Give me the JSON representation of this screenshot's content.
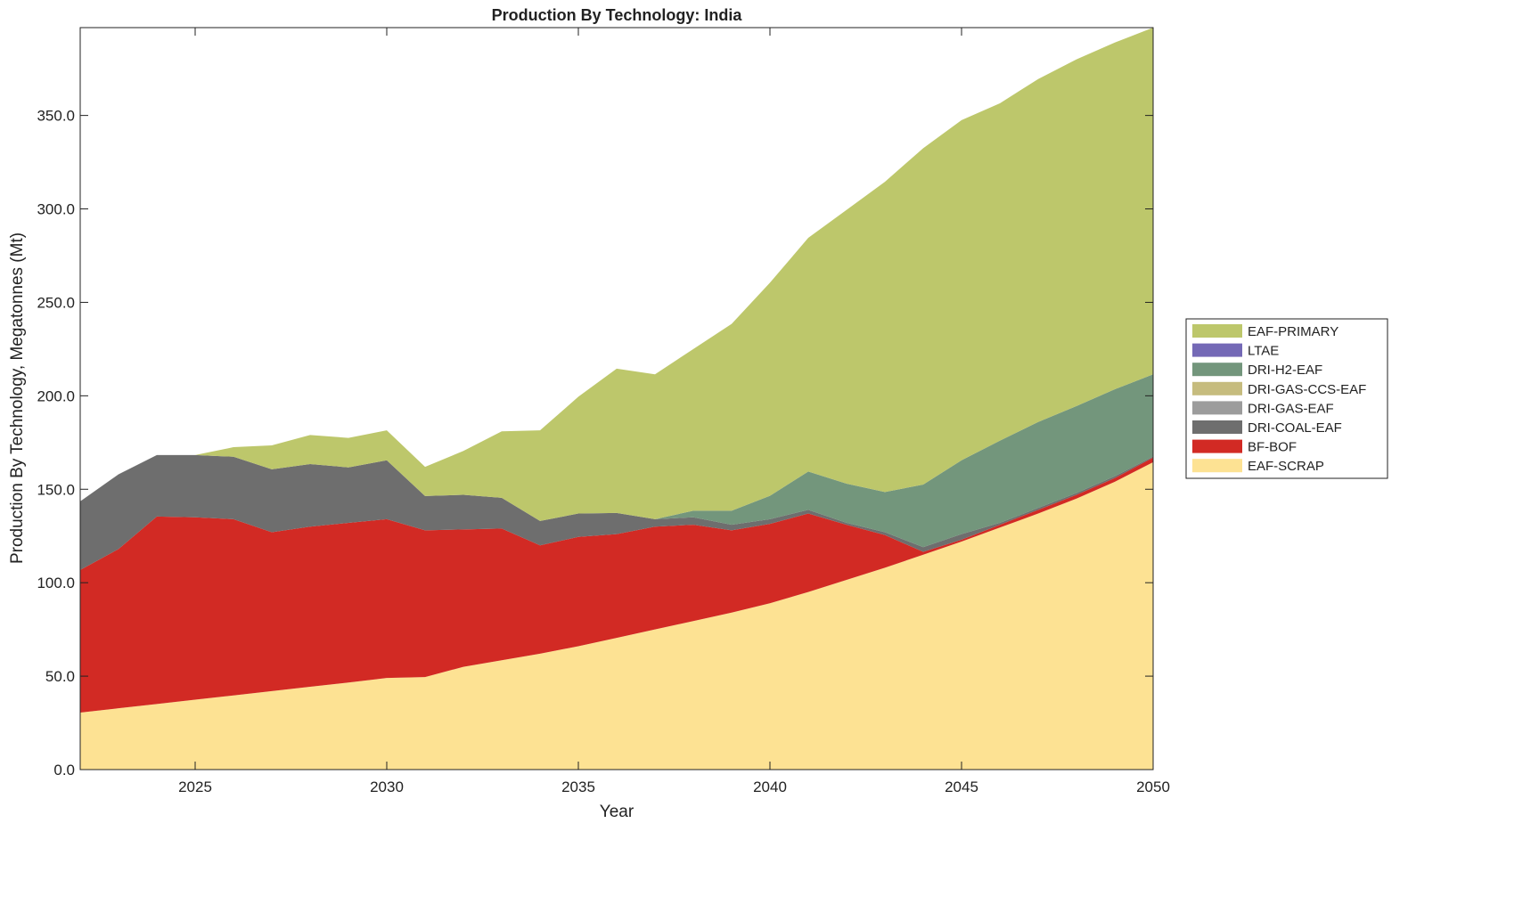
{
  "chart_data": {
    "type": "area",
    "stacked": true,
    "title": "Production By Technology: India",
    "xlabel": "Year",
    "ylabel": "Production By Technology, Megatonnes (Mt)",
    "xlim": [
      2022,
      2050
    ],
    "ylim": [
      0,
      397
    ],
    "xticks": [
      2025,
      2030,
      2035,
      2040,
      2045,
      2050
    ],
    "yticks": [
      0,
      50,
      100,
      150,
      200,
      250,
      300,
      350
    ],
    "ytick_labels": [
      "0.0",
      "50.0",
      "100.0",
      "150.0",
      "200.0",
      "250.0",
      "300.0",
      "350.0"
    ],
    "xtick_labels": [
      "2025",
      "2030",
      "2035",
      "2040",
      "2045",
      "2050"
    ],
    "legend_position": "right",
    "x": [
      2022,
      2023,
      2024,
      2025,
      2026,
      2027,
      2028,
      2029,
      2030,
      2031,
      2032,
      2033,
      2034,
      2035,
      2036,
      2037,
      2038,
      2039,
      2040,
      2041,
      2042,
      2043,
      2044,
      2045,
      2046,
      2047,
      2048,
      2049,
      2050
    ],
    "series": [
      {
        "name": "EAF-SCRAP",
        "color": "#fde293",
        "values": [
          30.5,
          32.8,
          35.1,
          37.4,
          39.7,
          42.0,
          44.3,
          46.6,
          49.0,
          49.5,
          55,
          58.5,
          62,
          66,
          70.5,
          75,
          79.5,
          84,
          89,
          95,
          101.5,
          108,
          115,
          122,
          129.5,
          137,
          145,
          154,
          164.5
        ]
      },
      {
        "name": "BF-BOF",
        "color": "#d22a24",
        "values": [
          76.3,
          85.2,
          100.3,
          97.6,
          94.3,
          85,
          85.7,
          85.4,
          85,
          78.5,
          73.5,
          70.5,
          58,
          58.5,
          55.5,
          55,
          51.5,
          44,
          42.5,
          42,
          29.5,
          17.5,
          1.5,
          1,
          1.5,
          2,
          2,
          2,
          2.5
        ]
      },
      {
        "name": "DRI-COAL-EAF",
        "color": "#6e6e6e",
        "values": [
          36.7,
          40,
          32.9,
          33.3,
          33.4,
          33.7,
          33.5,
          29.7,
          31.5,
          18.4,
          18.5,
          16.4,
          13,
          12.5,
          11.3,
          4,
          4,
          3,
          2.5,
          2,
          1,
          1.5,
          2.5,
          3,
          1,
          1,
          1,
          1,
          0.5
        ]
      },
      {
        "name": "DRI-GAS-EAF",
        "color": "#9c9c9c",
        "values": [
          0,
          0,
          0,
          0,
          0,
          0,
          0,
          0,
          0,
          0,
          0,
          0,
          0,
          0,
          0,
          0,
          0,
          0,
          0,
          0,
          0,
          0,
          0,
          0,
          0,
          0,
          0,
          0,
          0
        ]
      },
      {
        "name": "DRI-GAS-CCS-EAF",
        "color": "#c6bc7e",
        "values": [
          0,
          0,
          0,
          0,
          0,
          0,
          0,
          0,
          0,
          0,
          0,
          0,
          0,
          0,
          0,
          0,
          0,
          0,
          0,
          0,
          0,
          0,
          0,
          0,
          0,
          0,
          0,
          0,
          0
        ]
      },
      {
        "name": "DRI-H2-EAF",
        "color": "#73967c",
        "values": [
          0,
          0,
          0,
          0,
          0,
          0,
          0,
          0,
          0,
          0,
          0,
          0,
          0,
          0,
          0,
          0,
          3.5,
          7.5,
          12.5,
          20.5,
          21,
          21.5,
          33.5,
          39.5,
          44,
          46,
          46.5,
          46.5,
          44
        ]
      },
      {
        "name": "LTAE",
        "color": "#7469b6",
        "values": [
          0,
          0,
          0,
          0,
          0,
          0,
          0,
          0,
          0,
          0,
          0,
          0,
          0,
          0,
          0,
          0,
          0,
          0,
          0,
          0,
          0,
          0,
          0,
          0,
          0,
          0,
          0,
          0,
          0
        ]
      },
      {
        "name": "EAF-PRIMARY",
        "color": "#bdc76b",
        "values": [
          0,
          0,
          0,
          0,
          5.1,
          12.8,
          15.5,
          15.8,
          16,
          15.6,
          23.5,
          35.6,
          48.5,
          62.5,
          77.2,
          77.5,
          86.5,
          100,
          114,
          125,
          146.5,
          166,
          180,
          182,
          180.5,
          183.5,
          185.5,
          185.5,
          185.5
        ]
      }
    ]
  }
}
